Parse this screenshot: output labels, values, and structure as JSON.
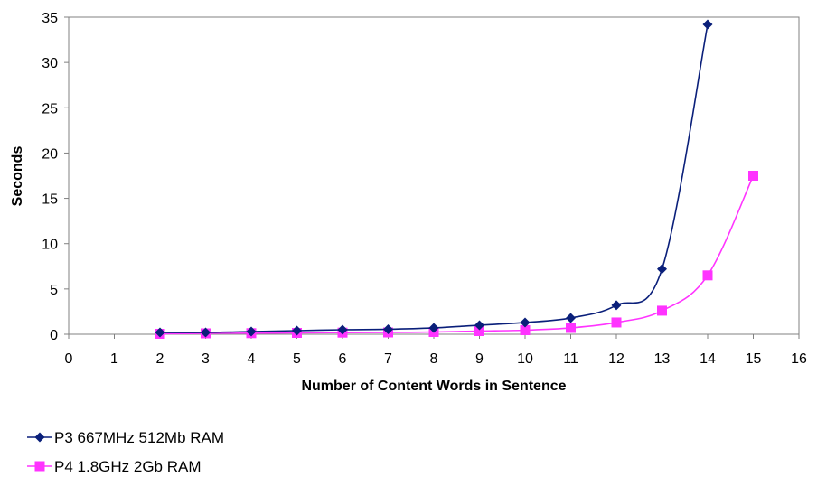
{
  "chart_data": {
    "type": "line",
    "title": "",
    "xlabel": "Number of Content Words in Sentence",
    "ylabel": "Seconds",
    "xlim": [
      0,
      16
    ],
    "ylim": [
      0,
      35
    ],
    "x_ticks": [
      "0",
      "1",
      "2",
      "3",
      "4",
      "5",
      "6",
      "7",
      "8",
      "9",
      "10",
      "11",
      "12",
      "13",
      "14",
      "15",
      "16"
    ],
    "y_ticks": [
      "0",
      "5",
      "10",
      "15",
      "20",
      "25",
      "30",
      "35"
    ],
    "grid": false,
    "legend_position": "bottom-left",
    "series": [
      {
        "name": "P3 667MHz 512Mb RAM",
        "color": "#0a1f7a",
        "marker": "diamond",
        "x": [
          2,
          3,
          4,
          5,
          6,
          7,
          8,
          9,
          10,
          11,
          12,
          13,
          14
        ],
        "y": [
          0.2,
          0.2,
          0.3,
          0.4,
          0.5,
          0.55,
          0.7,
          1.0,
          1.3,
          1.8,
          3.2,
          7.2,
          34.2
        ]
      },
      {
        "name": "P4 1.8GHz 2Gb RAM",
        "color": "#ff33ff",
        "marker": "square",
        "x": [
          2,
          3,
          4,
          5,
          6,
          7,
          8,
          9,
          10,
          11,
          12,
          13,
          14,
          15
        ],
        "y": [
          0.05,
          0.1,
          0.12,
          0.15,
          0.18,
          0.2,
          0.25,
          0.35,
          0.45,
          0.7,
          1.3,
          2.6,
          6.5,
          17.5
        ]
      }
    ]
  }
}
